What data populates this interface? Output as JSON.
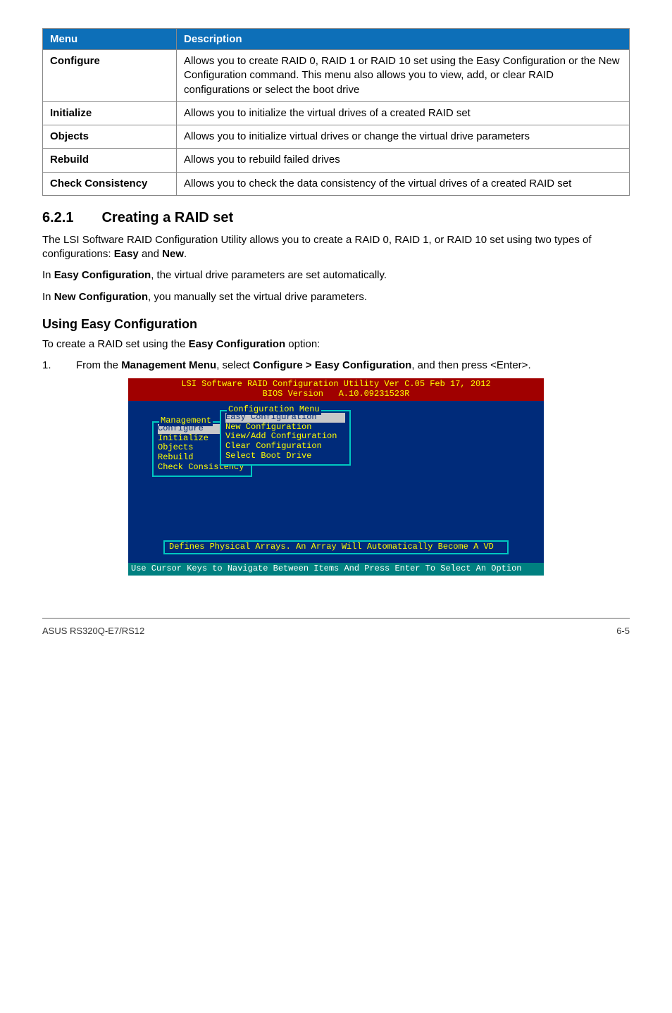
{
  "table": {
    "headers": {
      "menu": "Menu",
      "desc": "Description"
    },
    "rows": [
      {
        "menu": "Configure",
        "desc": "Allows you to create RAID 0, RAID 1 or RAID 10 set using the Easy Configuration or the New Configuration command. This menu also allows you to view, add, or clear RAID configurations or select the boot drive"
      },
      {
        "menu": "Initialize",
        "desc": "Allows you to initialize the virtual drives of a created RAID set"
      },
      {
        "menu": "Objects",
        "desc": "Allows you to initialize virtual drives or change the virtual drive parameters"
      },
      {
        "menu": "Rebuild",
        "desc": "Allows you to rebuild failed drives"
      },
      {
        "menu": "Check Consistency",
        "desc": "Allows you to check the data consistency of the virtual drives of a created RAID set"
      }
    ]
  },
  "section": {
    "num": "6.2.1",
    "title": "Creating a RAID set"
  },
  "para1_a": "The LSI Software RAID Configuration Utility allows you to create a RAID 0, RAID 1, or RAID 10 set using two types of configurations: ",
  "para1_b": "Easy",
  "para1_c": " and ",
  "para1_d": "New",
  "para1_e": ".",
  "para2_a": "In ",
  "para2_b": "Easy Configuration",
  "para2_c": ", the virtual drive parameters are set automatically.",
  "para3_a": "In ",
  "para3_b": "New Configuration",
  "para3_c": ", you manually set the virtual drive parameters.",
  "subhead": "Using Easy Configuration",
  "para4_a": "To create a RAID set using the ",
  "para4_b": "Easy Configuration",
  "para4_c": " option:",
  "step1_n": "1.",
  "step1_a": "From the ",
  "step1_b": "Management Menu",
  "step1_c": ", select ",
  "step1_d": "Configure > Easy Configuration",
  "step1_e": ", and then press <Enter>.",
  "bios": {
    "header_line1": "LSI Software RAID Configuration Utility Ver C.05 Feb 17, 2012",
    "header_line2": "BIOS Version   A.10.09231523R",
    "mgmt_title": "Management",
    "mgmt_items": [
      "Configure",
      "Initialize",
      "Objects",
      "Rebuild",
      "Check Consistency"
    ],
    "conf_title": "Configuration Menu",
    "conf_items": [
      "Easy Configuration",
      "New Configuration",
      "View/Add Configuration",
      "Clear Configuration",
      "Select Boot Drive"
    ],
    "status": "Defines Physical Arrays. An Array Will Automatically Become A VD",
    "footer": "Use Cursor Keys to Navigate Between Items And Press Enter To Select An Option"
  },
  "footer": {
    "left": "ASUS RS320Q-E7/RS12",
    "right": "6-5"
  }
}
